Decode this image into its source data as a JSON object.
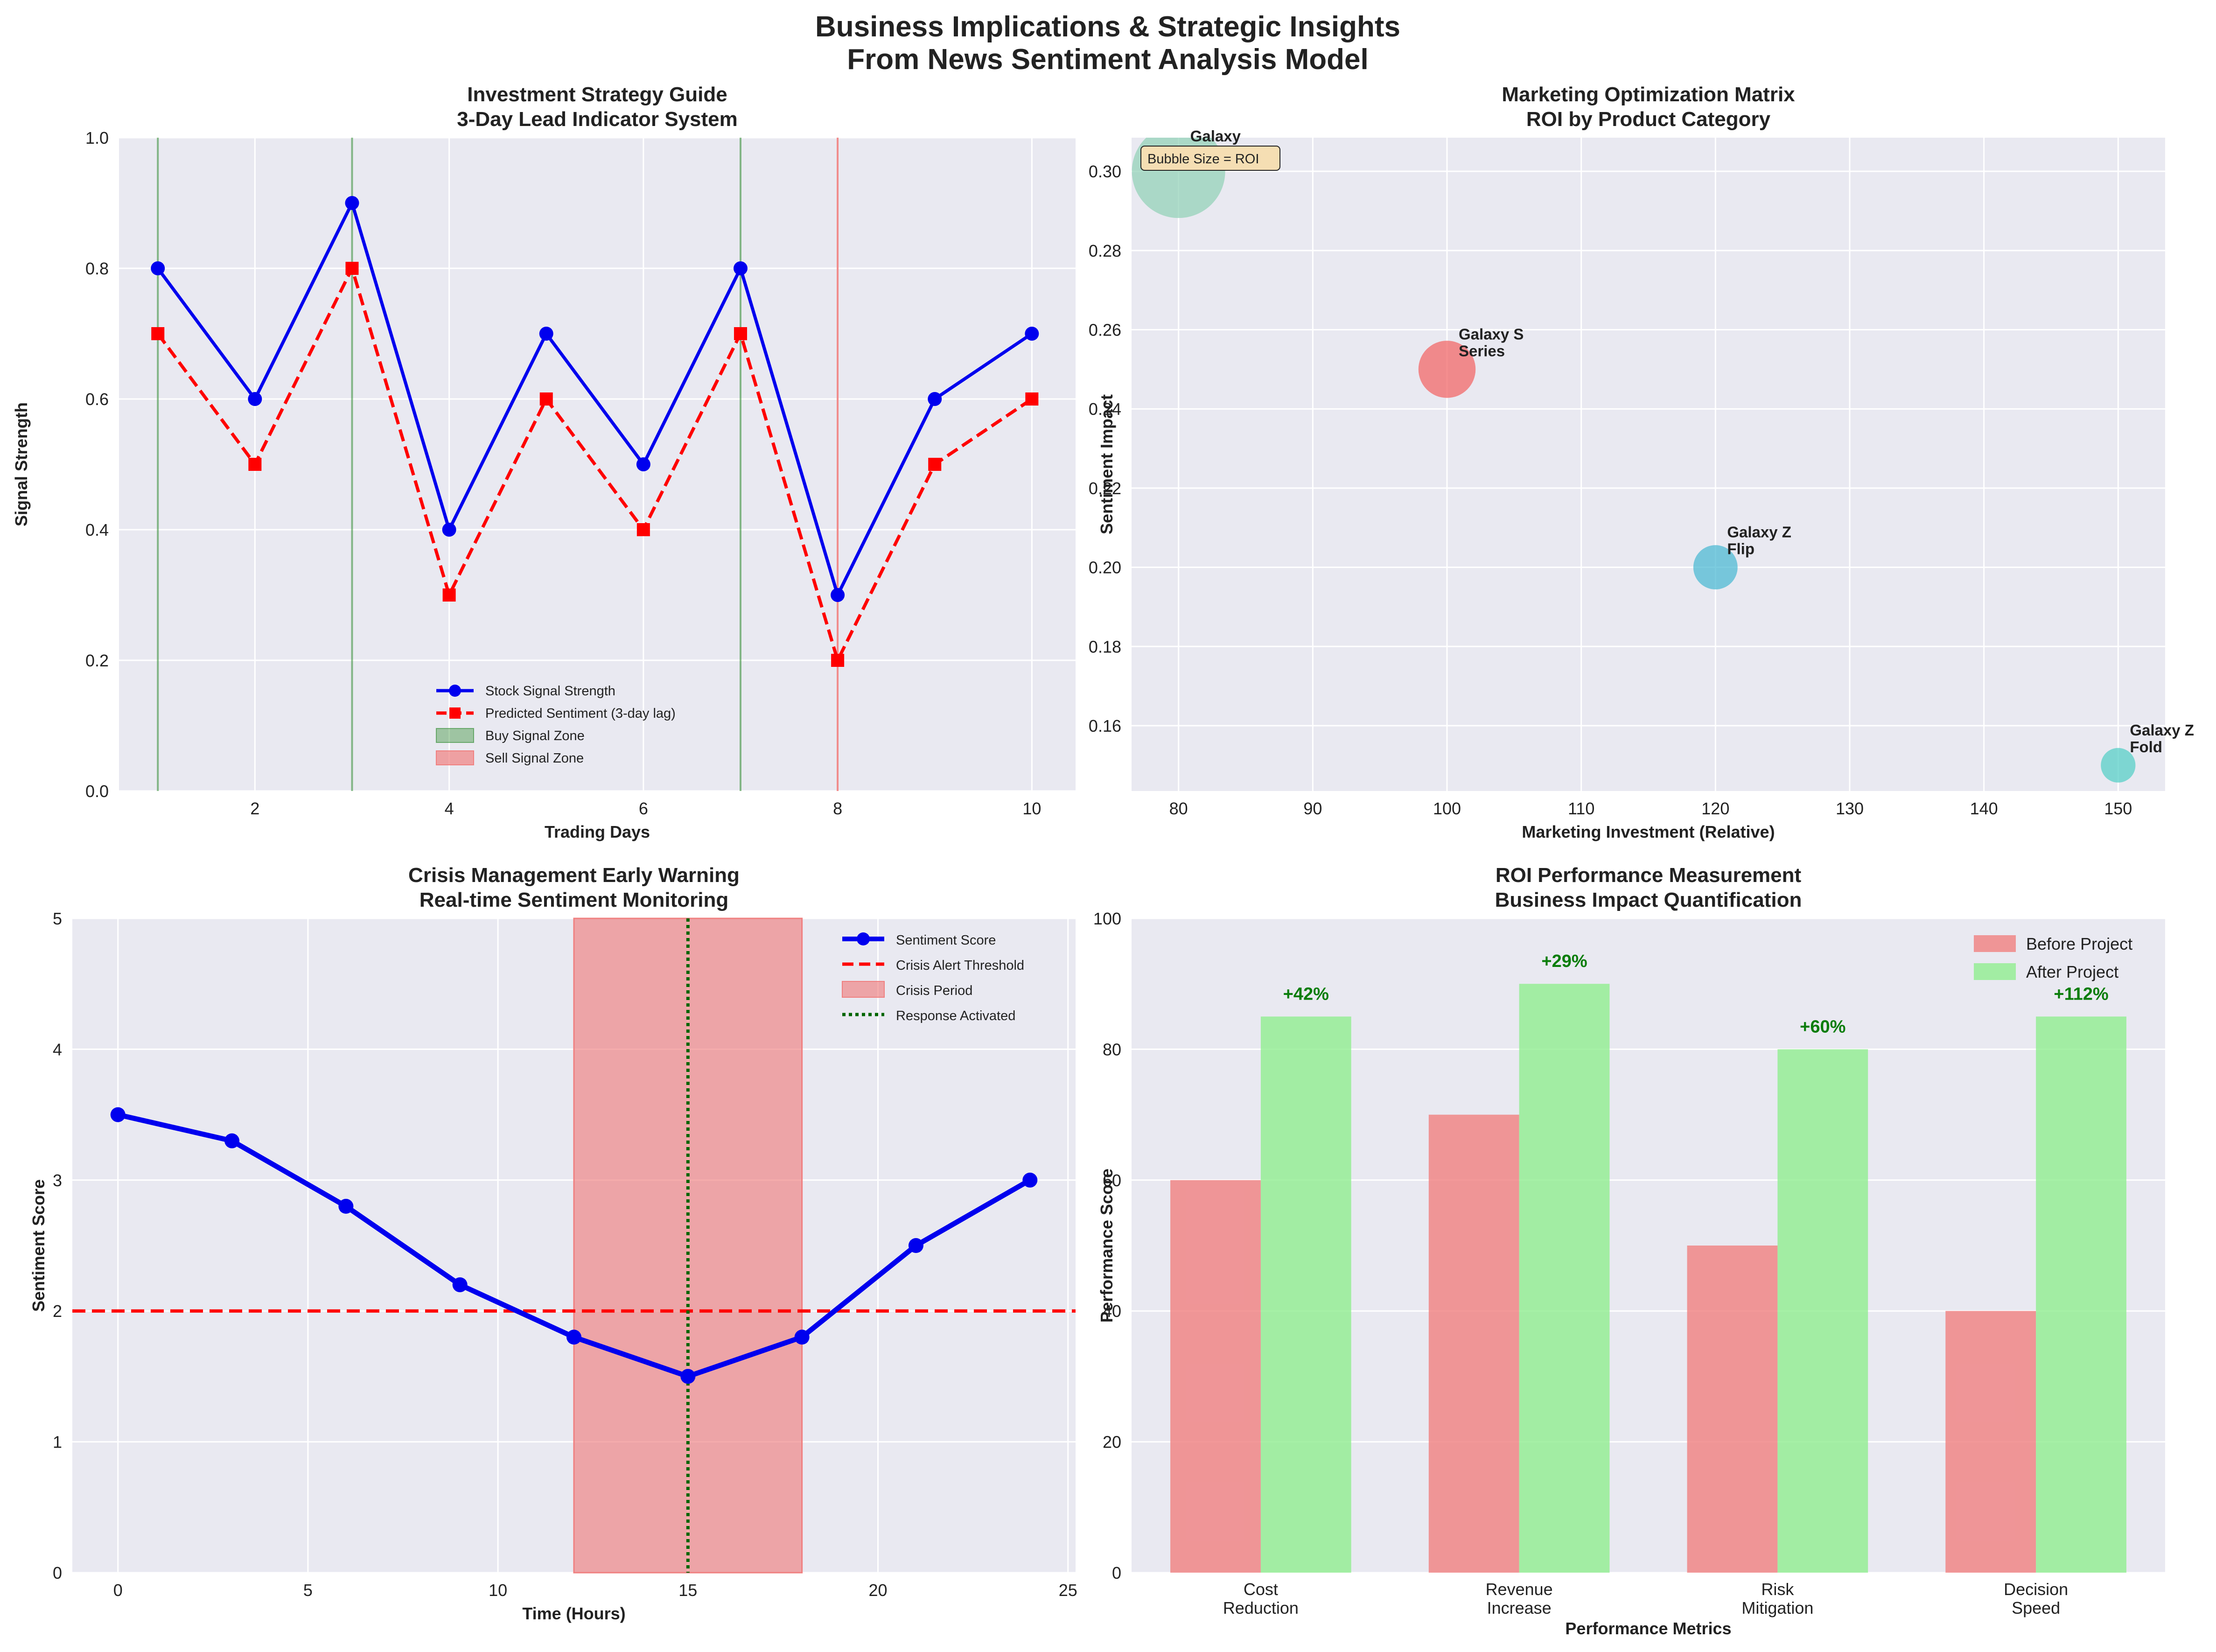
{
  "suptitle": [
    "Business Implications & Strategic Insights",
    "From News Sentiment Analysis Model"
  ],
  "colors": {
    "blue": "#0000ee",
    "red": "#ff0000",
    "buy_zone": "#2e8b2e",
    "sell_zone": "#f08080",
    "crisis_fill": "#f08080",
    "response": "#006400",
    "before": "#f08080",
    "after": "#90ee90",
    "pct_text": "#0a7d0a",
    "bubbles": [
      "#8fd0b5",
      "#f25f5f",
      "#45b7d1",
      "#4ecdc4"
    ]
  },
  "chart_data": [
    {
      "id": "investment",
      "type": "line",
      "title": [
        "Investment Strategy Guide",
        "3-Day Lead Indicator System"
      ],
      "xlabel": "Trading Days",
      "ylabel": "Signal Strength",
      "xlim": [
        0.6,
        10.45
      ],
      "ylim": [
        0,
        1.0
      ],
      "xticks": [
        2,
        4,
        6,
        8,
        10
      ],
      "yticks": [
        0.0,
        0.2,
        0.4,
        0.6,
        0.8,
        1.0
      ],
      "x": [
        1,
        2,
        3,
        4,
        5,
        6,
        7,
        8,
        9,
        10
      ],
      "series": [
        {
          "name": "Stock Signal Strength",
          "values": [
            0.8,
            0.6,
            0.9,
            0.4,
            0.7,
            0.5,
            0.8,
            0.3,
            0.6,
            0.7
          ],
          "style": "solid",
          "marker": "circle",
          "color": "#0000ee"
        },
        {
          "name": "Predicted Sentiment (3-day lag)",
          "values": [
            0.7,
            0.5,
            0.8,
            0.3,
            0.6,
            0.4,
            0.7,
            0.2,
            0.5,
            0.6
          ],
          "style": "dashed",
          "marker": "square",
          "color": "#ff0000"
        }
      ],
      "buy_lines": [
        1,
        3,
        7
      ],
      "sell_lines": [
        8
      ],
      "zone_legend": [
        "Buy Signal Zone",
        "Sell Signal Zone"
      ],
      "legend_position": "lower center",
      "grid": true
    },
    {
      "id": "marketing",
      "type": "scatter",
      "title": [
        "Marketing Optimization Matrix",
        "ROI by Product Category"
      ],
      "xlabel": "Marketing Investment (Relative)",
      "ylabel": "Sentiment Impact",
      "xlim": [
        76.5,
        153.5
      ],
      "ylim": [
        0.1435,
        0.3085
      ],
      "xticks": [
        80,
        90,
        100,
        110,
        120,
        130,
        140,
        150
      ],
      "yticks": [
        0.16,
        0.18,
        0.2,
        0.22,
        0.24,
        0.26,
        0.28,
        0.3
      ],
      "points": [
        {
          "label": [
            "Galaxy"
          ],
          "x": 80,
          "y": 0.3,
          "roi": 4.0
        },
        {
          "label": [
            "Galaxy S",
            "Series"
          ],
          "x": 100,
          "y": 0.25,
          "roi": 1.5
        },
        {
          "label": [
            "Galaxy Z",
            "Flip"
          ],
          "x": 120,
          "y": 0.2,
          "roi": 0.9
        },
        {
          "label": [
            "Galaxy Z",
            "Fold"
          ],
          "x": 150,
          "y": 0.15,
          "roi": 0.55
        }
      ],
      "annotation": "Bubble Size = ROI",
      "grid": true
    },
    {
      "id": "crisis",
      "type": "line",
      "title": [
        "Crisis Management Early Warning",
        "Real-time Sentiment Monitoring"
      ],
      "xlabel": "Time (Hours)",
      "ylabel": "Sentiment Score",
      "xlim": [
        -1.2,
        25.2
      ],
      "ylim": [
        0,
        5
      ],
      "xticks": [
        0,
        5,
        10,
        15,
        20,
        25
      ],
      "yticks": [
        0,
        1,
        2,
        3,
        4,
        5
      ],
      "x": [
        0,
        3,
        6,
        9,
        12,
        15,
        18,
        21,
        24
      ],
      "series": [
        {
          "name": "Sentiment Score",
          "values": [
            3.5,
            3.3,
            2.8,
            2.2,
            1.8,
            1.5,
            1.8,
            2.5,
            3.0
          ],
          "color": "#0000ee"
        }
      ],
      "threshold": {
        "name": "Crisis Alert Threshold",
        "value": 2
      },
      "crisis_period": {
        "name": "Crisis Period",
        "start": 12,
        "end": 18
      },
      "response": {
        "name": "Response Activated",
        "value": 15
      },
      "legend_position": "upper right",
      "grid": true
    },
    {
      "id": "roi",
      "type": "bar",
      "title": [
        "ROI Performance Measurement",
        "Business Impact Quantification"
      ],
      "xlabel": "Performance Metrics",
      "ylabel": "Performance Score",
      "ylim": [
        0,
        100
      ],
      "yticks": [
        0,
        20,
        40,
        60,
        80,
        100
      ],
      "categories": [
        [
          "Cost",
          "Reduction"
        ],
        [
          "Revenue",
          "Increase"
        ],
        [
          "Risk",
          "Mitigation"
        ],
        [
          "Decision",
          "Speed"
        ]
      ],
      "series": [
        {
          "name": "Before Project",
          "values": [
            60,
            70,
            50,
            40
          ]
        },
        {
          "name": "After Project",
          "values": [
            85,
            90,
            80,
            85
          ]
        }
      ],
      "improvements": [
        "+42%",
        "+29%",
        "+60%",
        "+112%"
      ],
      "legend_position": "upper right",
      "grid": true
    }
  ]
}
